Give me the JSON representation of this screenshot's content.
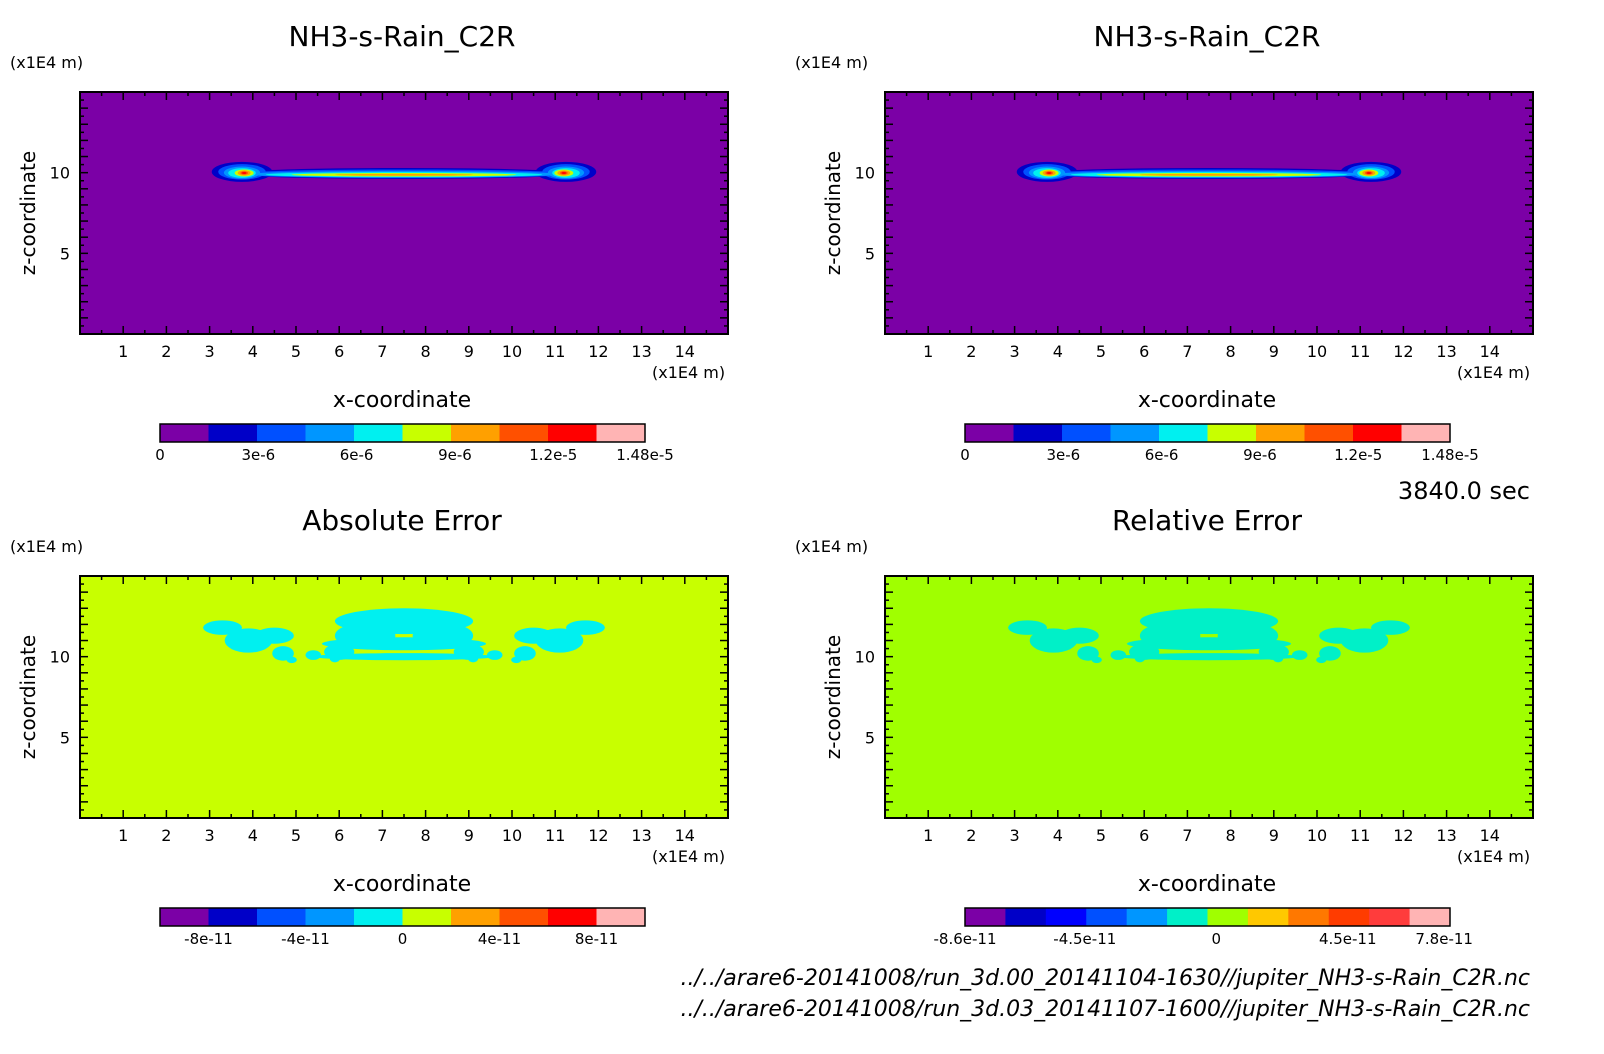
{
  "time_label": "3840.0 sec",
  "file_paths": [
    "../../arare6-20141008/run_3d.00_20141104-1630//jupiter_NH3-s-Rain_C2R.nc",
    "../../arare6-20141008/run_3d.03_20141107-1600//jupiter_NH3-s-Rain_C2R.nc"
  ],
  "chart_data": [
    {
      "type": "heatmap",
      "title": "NH3-s-Rain_C2R",
      "xlabel": "x-coordinate",
      "ylabel": "z-coordinate",
      "x_unit": "(x1E4 m)",
      "y_unit": "(x1E4 m)",
      "xlim": [
        0,
        15
      ],
      "ylim": [
        0,
        15
      ],
      "x_ticks": [
        "1",
        "2",
        "3",
        "4",
        "5",
        "6",
        "7",
        "8",
        "9",
        "10",
        "11",
        "12",
        "13",
        "14"
      ],
      "y_ticks": [
        "5",
        "10"
      ],
      "field": "cloud",
      "background": "#7b00a6",
      "colorbar": {
        "colors": [
          "#7b00a6",
          "#0000c8",
          "#0050ff",
          "#0096ff",
          "#00f0f0",
          "#c8ff00",
          "#ffa000",
          "#ff5000",
          "#ff0000",
          "#ffb4b4"
        ],
        "labels": [
          "0",
          "3e-6",
          "6e-6",
          "9e-6",
          "1.2e-5",
          "1.48e-5"
        ],
        "range": [
          0,
          1.48e-05
        ]
      }
    },
    {
      "type": "heatmap",
      "title": "NH3-s-Rain_C2R",
      "xlabel": "x-coordinate",
      "ylabel": "z-coordinate",
      "x_unit": "(x1E4 m)",
      "y_unit": "(x1E4 m)",
      "xlim": [
        0,
        15
      ],
      "ylim": [
        0,
        15
      ],
      "x_ticks": [
        "1",
        "2",
        "3",
        "4",
        "5",
        "6",
        "7",
        "8",
        "9",
        "10",
        "11",
        "12",
        "13",
        "14"
      ],
      "y_ticks": [
        "5",
        "10"
      ],
      "field": "cloud",
      "background": "#7b00a6",
      "colorbar": {
        "colors": [
          "#7b00a6",
          "#0000c8",
          "#0050ff",
          "#0096ff",
          "#00f0f0",
          "#c8ff00",
          "#ffa000",
          "#ff5000",
          "#ff0000",
          "#ffb4b4"
        ],
        "labels": [
          "0",
          "3e-6",
          "6e-6",
          "9e-6",
          "1.2e-5",
          "1.48e-5"
        ],
        "range": [
          0,
          1.48e-05
        ]
      }
    },
    {
      "type": "heatmap",
      "title": "Absolute Error",
      "xlabel": "x-coordinate",
      "ylabel": "z-coordinate",
      "x_unit": "(x1E4 m)",
      "y_unit": "(x1E4 m)",
      "xlim": [
        0,
        15
      ],
      "ylim": [
        0,
        15
      ],
      "x_ticks": [
        "1",
        "2",
        "3",
        "4",
        "5",
        "6",
        "7",
        "8",
        "9",
        "10",
        "11",
        "12",
        "13",
        "14"
      ],
      "y_ticks": [
        "5",
        "10"
      ],
      "field": "error",
      "background": "#c8ff00",
      "blob_color": "#00f0f0",
      "colorbar": {
        "colors": [
          "#7b00a6",
          "#0000c8",
          "#0050ff",
          "#0096ff",
          "#00f0f0",
          "#c8ff00",
          "#ffa000",
          "#ff5000",
          "#ff0000",
          "#ffb4b4"
        ],
        "labels": [
          "-8e-11",
          "-4e-11",
          "0",
          "4e-11",
          "8e-11"
        ],
        "range": [
          -1e-10,
          1e-10
        ]
      }
    },
    {
      "type": "heatmap",
      "title": "Relative Error",
      "xlabel": "x-coordinate",
      "ylabel": "z-coordinate",
      "x_unit": "(x1E4 m)",
      "y_unit": "(x1E4 m)",
      "xlim": [
        0,
        15
      ],
      "ylim": [
        0,
        15
      ],
      "x_ticks": [
        "1",
        "2",
        "3",
        "4",
        "5",
        "6",
        "7",
        "8",
        "9",
        "10",
        "11",
        "12",
        "13",
        "14"
      ],
      "y_ticks": [
        "5",
        "10"
      ],
      "field": "error",
      "background": "#a0ff00",
      "blob_color": "#00f0c8",
      "colorbar": {
        "colors": [
          "#7b00a6",
          "#0000c8",
          "#0000ff",
          "#0050ff",
          "#0096ff",
          "#00f0c8",
          "#a0ff00",
          "#ffc800",
          "#ff7800",
          "#ff3c00",
          "#ff3c3c",
          "#ffb4b4"
        ],
        "labels": [
          "-8.6e-11",
          "-4.5e-11",
          "0",
          "4.5e-11",
          "7.8e-11"
        ],
        "range": [
          -8.6e-11,
          8e-11
        ]
      }
    }
  ]
}
